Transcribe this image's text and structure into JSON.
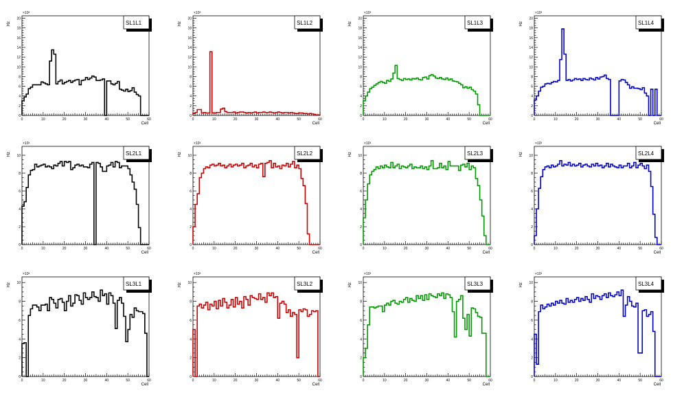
{
  "chart_data": [
    {
      "type": "bar",
      "title": "SL1L1",
      "color": "#000000",
      "xlabel": "Cell",
      "ylabel": "Hz",
      "yexp": "×10³",
      "xlim": [
        0,
        60
      ],
      "ylim": [
        0,
        20.5
      ],
      "yticks": [
        0,
        2,
        4,
        6,
        8,
        10,
        12,
        14,
        16,
        18,
        20
      ],
      "xticks": [
        0,
        10,
        20,
        30,
        40,
        50,
        60
      ],
      "values": [
        3,
        3.8,
        4.4,
        5.5,
        5.8,
        6.3,
        6.3,
        6.3,
        6.3,
        6.9,
        6.7,
        6.5,
        6.3,
        11.2,
        13.5,
        12.6,
        6.5,
        7,
        7.3,
        6.5,
        6.8,
        7,
        7.2,
        6.8,
        7.1,
        7.3,
        7.4,
        6.3,
        7.2,
        7.3,
        7.8,
        7.4,
        7.7,
        8.1,
        7.9,
        7.2,
        7.2,
        7.3,
        7.5,
        0,
        7.1,
        7.1,
        6.5,
        6.3,
        6.6,
        7,
        5.4,
        5.2,
        5,
        5.4,
        4.9,
        5.1,
        5.7,
        4.8,
        4.3,
        4,
        0,
        0,
        0,
        0
      ]
    },
    {
      "type": "bar",
      "title": "SL1L2",
      "color": "#cc0000",
      "xlabel": "Cell",
      "ylabel": "Hz",
      "yexp": "×10³",
      "xlim": [
        0,
        60
      ],
      "ylim": [
        0,
        20.5
      ],
      "yticks": [
        0,
        2,
        4,
        6,
        8,
        10,
        12,
        14,
        16,
        18,
        20
      ],
      "xticks": [
        0,
        10,
        20,
        30,
        40,
        50,
        60
      ],
      "values": [
        0.4,
        0.6,
        1.2,
        1.2,
        0.5,
        0.6,
        0.5,
        0.5,
        13.1,
        0.5,
        0.5,
        0.6,
        0.6,
        1.3,
        1.5,
        0.8,
        0.6,
        0.6,
        0.6,
        0.7,
        0.5,
        0.6,
        0.7,
        0.7,
        0.6,
        0.5,
        0.6,
        0.5,
        0.6,
        0.7,
        0.5,
        0.6,
        0.6,
        0.7,
        0.6,
        0.6,
        0.7,
        0.6,
        0.5,
        0.6,
        0.7,
        0.6,
        0.5,
        0.6,
        0.6,
        0.5,
        0.6,
        0.5,
        0.4,
        0.4,
        0.5,
        0.5,
        0.4,
        0.4,
        0.3,
        0.4,
        0.3,
        0.2,
        0.1,
        0.1
      ]
    },
    {
      "type": "bar",
      "title": "SL1L3",
      "color": "#009900",
      "xlabel": "Cell",
      "ylabel": "Hz",
      "yexp": "×10³",
      "xlim": [
        0,
        60
      ],
      "ylim": [
        0,
        20.5
      ],
      "yticks": [
        0,
        2,
        4,
        6,
        8,
        10,
        12,
        14,
        16,
        18,
        20
      ],
      "xticks": [
        0,
        10,
        20,
        30,
        40,
        50,
        60
      ],
      "values": [
        3,
        4,
        4.8,
        5.5,
        5.8,
        6.2,
        6.5,
        6.8,
        7,
        6.8,
        6.6,
        7.2,
        7,
        7.5,
        8.7,
        10.3,
        7.6,
        7.4,
        7.2,
        7.6,
        7.4,
        7.5,
        7.3,
        7.6,
        7.5,
        7.7,
        7.4,
        7.3,
        7.8,
        7.9,
        7.5,
        8.2,
        8.4,
        8.1,
        7.7,
        7.6,
        7.8,
        7.5,
        7.4,
        7.7,
        7.3,
        7.5,
        7.1,
        7,
        6.9,
        6.6,
        6.3,
        5.7,
        5.9,
        5.6,
        5.8,
        5.3,
        5,
        4.4,
        2.2,
        0,
        0,
        0,
        0,
        0
      ]
    },
    {
      "type": "bar",
      "title": "SL1L4",
      "color": "#0000cc",
      "xlabel": "Cell",
      "ylabel": "Hz",
      "yexp": "×10³",
      "xlim": [
        0,
        60
      ],
      "ylim": [
        0,
        20.5
      ],
      "yticks": [
        0,
        2,
        4,
        6,
        8,
        10,
        12,
        14,
        16,
        18,
        20
      ],
      "xticks": [
        0,
        10,
        20,
        30,
        40,
        50,
        60
      ],
      "values": [
        3.2,
        4,
        5,
        5.8,
        6,
        6.5,
        6.6,
        6.5,
        6.8,
        7,
        6.9,
        7.2,
        11.5,
        17.8,
        12.6,
        7.2,
        7.4,
        7.1,
        7.3,
        7.6,
        7.4,
        7.5,
        7.2,
        7.6,
        7.4,
        7.3,
        7.7,
        7.5,
        7.3,
        7.8,
        7.5,
        7.9,
        8,
        8.3,
        7.6,
        7.4,
        0,
        0,
        0,
        0,
        7.1,
        7.4,
        7.3,
        6.8,
        6.3,
        5.6,
        5.9,
        5.6,
        5.6,
        5.5,
        5.3,
        5.7,
        4.6,
        4,
        0,
        5.4,
        0,
        5.4,
        0,
        0
      ]
    },
    {
      "type": "bar",
      "title": "SL2L1",
      "color": "#000000",
      "xlabel": "Cell",
      "ylabel": "Hz",
      "yexp": "×10³",
      "xlim": [
        0,
        60
      ],
      "ylim": [
        0,
        11
      ],
      "yticks": [
        0,
        2,
        4,
        6,
        8,
        10
      ],
      "xticks": [
        0,
        10,
        20,
        30,
        40,
        50,
        60
      ],
      "values": [
        4.3,
        4.8,
        6.4,
        7.8,
        8.3,
        8.4,
        9,
        8.7,
        8.8,
        8.9,
        9,
        8.7,
        8.8,
        8.7,
        8.5,
        8.9,
        8.8,
        9.1,
        9.3,
        8.8,
        9.3,
        9.2,
        9.3,
        8.4,
        8.6,
        8.9,
        9,
        8.8,
        8.9,
        8.7,
        8.7,
        8.6,
        9,
        9.2,
        0,
        9.2,
        9.1,
        8.7,
        8.2,
        8.2,
        8.8,
        8.9,
        9.2,
        8.7,
        9.3,
        9.2,
        8.6,
        8.8,
        8.8,
        8.8,
        8.5,
        7.8,
        7,
        6.2,
        4.5,
        1.9,
        0,
        0,
        0,
        0
      ]
    },
    {
      "type": "bar",
      "title": "SL2L2",
      "color": "#cc0000",
      "xlabel": "Cell",
      "ylabel": "Hz",
      "yexp": "×10³",
      "xlim": [
        0,
        60
      ],
      "ylim": [
        0,
        11
      ],
      "yticks": [
        0,
        2,
        4,
        6,
        8,
        10
      ],
      "xticks": [
        0,
        10,
        20,
        30,
        40,
        50,
        60
      ],
      "values": [
        2,
        4.5,
        5.7,
        7.5,
        8,
        8.5,
        8.7,
        8.6,
        8.9,
        9,
        8.8,
        8.9,
        9.1,
        8.8,
        8.9,
        8.6,
        8.8,
        9,
        8.7,
        8.9,
        9,
        8.8,
        8.9,
        9.1,
        8.6,
        8.8,
        8.9,
        9.1,
        8.7,
        8.9,
        8.6,
        9,
        9.1,
        7.6,
        9.1,
        9.2,
        9.4,
        8.6,
        9.1,
        8.7,
        8.8,
        8.5,
        8.9,
        8.8,
        9.1,
        8.7,
        9,
        9.3,
        8.6,
        8.9,
        8.5,
        7.4,
        6.6,
        4.6,
        1.2,
        0,
        0,
        0,
        0,
        0
      ]
    },
    {
      "type": "bar",
      "title": "SL2L3",
      "color": "#009900",
      "xlabel": "Cell",
      "ylabel": "Hz",
      "yexp": "×10³",
      "xlim": [
        0,
        60
      ],
      "ylim": [
        0,
        11
      ],
      "yticks": [
        0,
        2,
        4,
        6,
        8,
        10
      ],
      "xticks": [
        0,
        10,
        20,
        30,
        40,
        50,
        60
      ],
      "values": [
        3,
        5,
        6.8,
        7.8,
        8.2,
        8.4,
        8.7,
        8.5,
        8.8,
        8.6,
        8.9,
        8.7,
        8.6,
        9.2,
        8.6,
        8.8,
        9,
        8.5,
        8.8,
        8.7,
        8.6,
        8.8,
        9,
        8.5,
        8.7,
        8.6,
        8.6,
        8.8,
        8.5,
        8.7,
        8.4,
        8.8,
        9.4,
        8.5,
        8.5,
        8.6,
        9.1,
        8.6,
        8.8,
        8.4,
        9.3,
        8.8,
        8.8,
        8.8,
        8.8,
        8.3,
        8.9,
        9,
        8.7,
        9.1,
        8.4,
        8.8,
        8.6,
        7.4,
        6.6,
        5,
        3.2,
        1,
        0,
        0
      ]
    },
    {
      "type": "bar",
      "title": "SL2L4",
      "color": "#0000cc",
      "xlabel": "Cell",
      "ylabel": "Hz",
      "yexp": "×10³",
      "xlim": [
        0,
        60
      ],
      "ylim": [
        0,
        11
      ],
      "yticks": [
        0,
        2,
        4,
        6,
        8,
        10
      ],
      "xticks": [
        0,
        10,
        20,
        30,
        40,
        50,
        60
      ],
      "values": [
        1,
        4,
        6.3,
        7.6,
        8.4,
        8.7,
        8.8,
        8.6,
        8.9,
        8.7,
        8.8,
        9,
        9.4,
        8.8,
        9,
        8.9,
        9.2,
        8.8,
        9,
        8.8,
        8.9,
        9.1,
        8.7,
        8.9,
        9,
        8.8,
        8.7,
        9,
        8.8,
        9.1,
        8.8,
        8.9,
        8.6,
        8.8,
        9.1,
        8.7,
        9,
        8.8,
        8.7,
        8.6,
        8.9,
        8.6,
        8.8,
        8.8,
        9.1,
        8.6,
        8.8,
        9.2,
        8.6,
        8.9,
        9.1,
        8.8,
        8.5,
        8.9,
        8.2,
        6.5,
        3.4,
        0.8,
        0,
        0
      ]
    },
    {
      "type": "bar",
      "title": "SL3L1",
      "color": "#000000",
      "xlabel": "Cell",
      "ylabel": "Hz",
      "yexp": "×10³",
      "xlim": [
        0,
        60
      ],
      "ylim": [
        0,
        10.6
      ],
      "yticks": [
        0,
        2,
        4,
        6,
        8,
        10
      ],
      "xticks": [
        0,
        10,
        20,
        30,
        40,
        50,
        60
      ],
      "values": [
        3.5,
        3.6,
        0,
        6.5,
        7.2,
        7.6,
        7.6,
        7.4,
        7,
        7.6,
        7.6,
        7.7,
        7,
        8.4,
        8.2,
        7.8,
        7.3,
        8.2,
        8.3,
        7.9,
        7,
        8,
        8.6,
        7.5,
        7.8,
        8.7,
        8.6,
        8.1,
        7.7,
        8.9,
        8.4,
        8.2,
        8.4,
        9,
        8.5,
        8.4,
        8,
        9.2,
        8.6,
        8.8,
        7.7,
        8.9,
        8.6,
        7.8,
        5.1,
        8.1,
        8.4,
        7.8,
        6.4,
        3.7,
        5,
        6.6,
        6.3,
        7.3,
        7,
        6.9,
        6.9,
        6.7,
        4.6,
        0
      ]
    },
    {
      "type": "bar",
      "title": "SL3L2",
      "color": "#cc0000",
      "xlabel": "Cell",
      "ylabel": "Hz",
      "yexp": "×10³",
      "xlim": [
        0,
        60
      ],
      "ylim": [
        0,
        10.6
      ],
      "yticks": [
        0,
        2,
        4,
        6,
        8,
        10
      ],
      "xticks": [
        0,
        10,
        20,
        30,
        40,
        50,
        60
      ],
      "values": [
        5,
        0,
        7.5,
        7.7,
        7.3,
        7.6,
        7.9,
        7.1,
        7.7,
        7.5,
        8,
        7.2,
        8.1,
        7.5,
        8.3,
        7.9,
        7.3,
        7.6,
        8.2,
        7.4,
        8.4,
        7.7,
        8,
        7.3,
        8.5,
        8.2,
        7.6,
        8.6,
        8.4,
        8.3,
        8.2,
        8.8,
        8.2,
        8.4,
        7.9,
        8.9,
        8.6,
        8.9,
        8.4,
        8.5,
        6.2,
        7.8,
        8,
        7.7,
        6.8,
        7.1,
        6.4,
        6.8,
        6.6,
        2,
        7.1,
        6.9,
        7.2,
        7.1,
        6.4,
        6.6,
        7,
        6.9,
        7,
        0
      ]
    },
    {
      "type": "bar",
      "title": "SL3L3",
      "color": "#009900",
      "xlabel": "Cell",
      "ylabel": "Hz",
      "yexp": "×10³",
      "xlim": [
        0,
        60
      ],
      "ylim": [
        0,
        10.6
      ],
      "yticks": [
        0,
        2,
        4,
        6,
        8,
        10
      ],
      "xticks": [
        0,
        10,
        20,
        30,
        40,
        50,
        60
      ],
      "values": [
        2,
        3,
        5.5,
        7.4,
        7.4,
        7.3,
        7.4,
        7.5,
        7.5,
        6.9,
        7.6,
        7.8,
        7.6,
        8,
        8.1,
        7.8,
        7.7,
        8,
        7.9,
        8.2,
        8.4,
        7.9,
        8.3,
        8.1,
        8,
        8.6,
        8.3,
        8.6,
        8.1,
        8.7,
        8.2,
        8.8,
        8.6,
        8.5,
        8.4,
        8.8,
        8.6,
        8.9,
        8.3,
        8.8,
        8.7,
        8.4,
        6.9,
        4.2,
        8,
        8.2,
        8.6,
        6.2,
        5,
        6.6,
        4.3,
        7.3,
        7.2,
        6.8,
        6.4,
        6.3,
        4.6,
        4.6,
        0,
        0
      ]
    },
    {
      "type": "bar",
      "title": "SL3L4",
      "color": "#0000cc",
      "xlabel": "Cell",
      "ylabel": "Hz",
      "yexp": "×10³",
      "xlim": [
        0,
        60
      ],
      "ylim": [
        0,
        10.6
      ],
      "yticks": [
        0,
        2,
        4,
        6,
        8,
        10
      ],
      "xticks": [
        0,
        10,
        20,
        30,
        40,
        50,
        60
      ],
      "values": [
        4.5,
        1.3,
        6.9,
        7.6,
        7.2,
        7.4,
        7.7,
        7.5,
        7.8,
        7.6,
        8,
        7.8,
        8.1,
        7.8,
        7.7,
        8.3,
        7.9,
        8.1,
        7.9,
        8.2,
        8.4,
        8,
        8.3,
        8.1,
        8.5,
        8.2,
        7.9,
        8.8,
        8.3,
        8.6,
        8.5,
        8.2,
        8.6,
        8.8,
        8.4,
        8.9,
        8.6,
        8.5,
        8.7,
        9,
        8.6,
        9.2,
        6.4,
        7.6,
        8.5,
        8,
        7.5,
        7.4,
        7.8,
        2.5,
        2.5,
        7,
        7.1,
        6.4,
        6.6,
        6.9,
        4.8,
        0,
        0,
        0
      ]
    }
  ]
}
